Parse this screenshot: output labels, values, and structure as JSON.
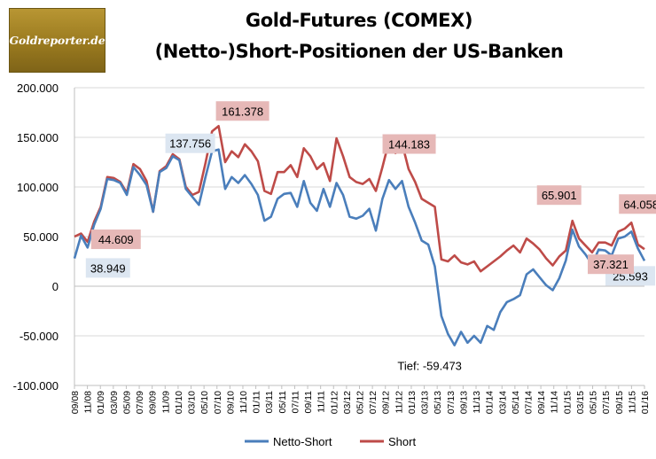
{
  "logo": {
    "text": "Goldreporter.de"
  },
  "chart_data": {
    "type": "line",
    "title": "Gold-Futures (COMEX)",
    "subtitle": "(Netto-)Short-Positionen der US-Banken",
    "ylim": [
      -100000,
      200000
    ],
    "yticks": [
      "200.000",
      "150.000",
      "100.000",
      "50.000",
      "0",
      "-50.000",
      "-100.000"
    ],
    "xticks": [
      "09/08",
      "11/08",
      "01/09",
      "03/09",
      "05/09",
      "07/09",
      "09/09",
      "11/09",
      "01/10",
      "03/10",
      "05/10",
      "07/10",
      "09/10",
      "11/10",
      "01/11",
      "03/11",
      "05/11",
      "07/11",
      "09/11",
      "11/11",
      "01/12",
      "03/12",
      "05/12",
      "07/12",
      "09/12",
      "11/12",
      "01/13",
      "03/13",
      "05/13",
      "07/13",
      "09/13",
      "11/13",
      "01/14",
      "03/14",
      "05/14",
      "07/14",
      "09/14",
      "11/14",
      "01/15",
      "03/15",
      "05/15",
      "07/15",
      "09/15",
      "11/15",
      "01/16"
    ],
    "grid": true,
    "legend_position": "bottom",
    "series": [
      {
        "name": "Netto-Short",
        "color": "#4a7ebb",
        "values": [
          28000,
          51000,
          38949,
          62000,
          78000,
          108000,
          107000,
          104000,
          92000,
          120000,
          112000,
          102000,
          75000,
          115000,
          119000,
          131000,
          127000,
          98000,
          90000,
          82000,
          110000,
          136000,
          137756,
          98000,
          110000,
          104000,
          112000,
          103000,
          92000,
          66000,
          70000,
          88000,
          93000,
          94000,
          80000,
          106000,
          84000,
          76000,
          98000,
          80000,
          104000,
          92000,
          70000,
          68000,
          71000,
          78000,
          56000,
          88000,
          107000,
          98000,
          106000,
          80000,
          64000,
          46000,
          42000,
          20000,
          -30000,
          -48000,
          -59473,
          -46000,
          -57000,
          -50000,
          -57000,
          -40000,
          -44000,
          -26000,
          -16000,
          -13000,
          -9000,
          12000,
          17000,
          9000,
          1000,
          -4000,
          8000,
          26000,
          57000,
          40000,
          32000,
          22000,
          37000,
          36000,
          31000,
          48000,
          50000,
          55000,
          38000,
          25593
        ]
      },
      {
        "name": "Short",
        "color": "#be4b48",
        "values": [
          50000,
          53000,
          44609,
          65000,
          80000,
          110000,
          109000,
          105000,
          94000,
          123000,
          118000,
          106000,
          75000,
          116000,
          121000,
          133000,
          128000,
          100000,
          92000,
          95000,
          124000,
          156000,
          161378,
          125000,
          136000,
          130000,
          143000,
          136000,
          126000,
          96000,
          93000,
          115000,
          115000,
          122000,
          110000,
          139000,
          131000,
          118000,
          124000,
          106000,
          149000,
          131000,
          110000,
          105000,
          103000,
          108000,
          96000,
          120000,
          146000,
          134000,
          144183,
          118000,
          105000,
          88000,
          84000,
          80000,
          27000,
          25000,
          31000,
          24000,
          22000,
          25000,
          15000,
          20000,
          25000,
          30000,
          36000,
          41000,
          34000,
          48000,
          43000,
          37000,
          28000,
          21000,
          30000,
          36000,
          65901,
          48000,
          41000,
          34000,
          44000,
          44000,
          41000,
          55000,
          58000,
          64058,
          42000,
          37321
        ]
      }
    ],
    "data_labels": [
      {
        "series": "Netto-Short",
        "text": "38.949"
      },
      {
        "series": "Netto-Short",
        "text": "137.756"
      },
      {
        "series": "Netto-Short",
        "text": "25.593"
      },
      {
        "series": "Short",
        "text": "44.609"
      },
      {
        "series": "Short",
        "text": "161.378"
      },
      {
        "series": "Short",
        "text": "144.183"
      },
      {
        "series": "Short",
        "text": "65.901"
      },
      {
        "series": "Short",
        "text": "64.058"
      },
      {
        "series": "Short",
        "text": "37.321"
      }
    ],
    "annotation": "Tief: -59.473"
  }
}
